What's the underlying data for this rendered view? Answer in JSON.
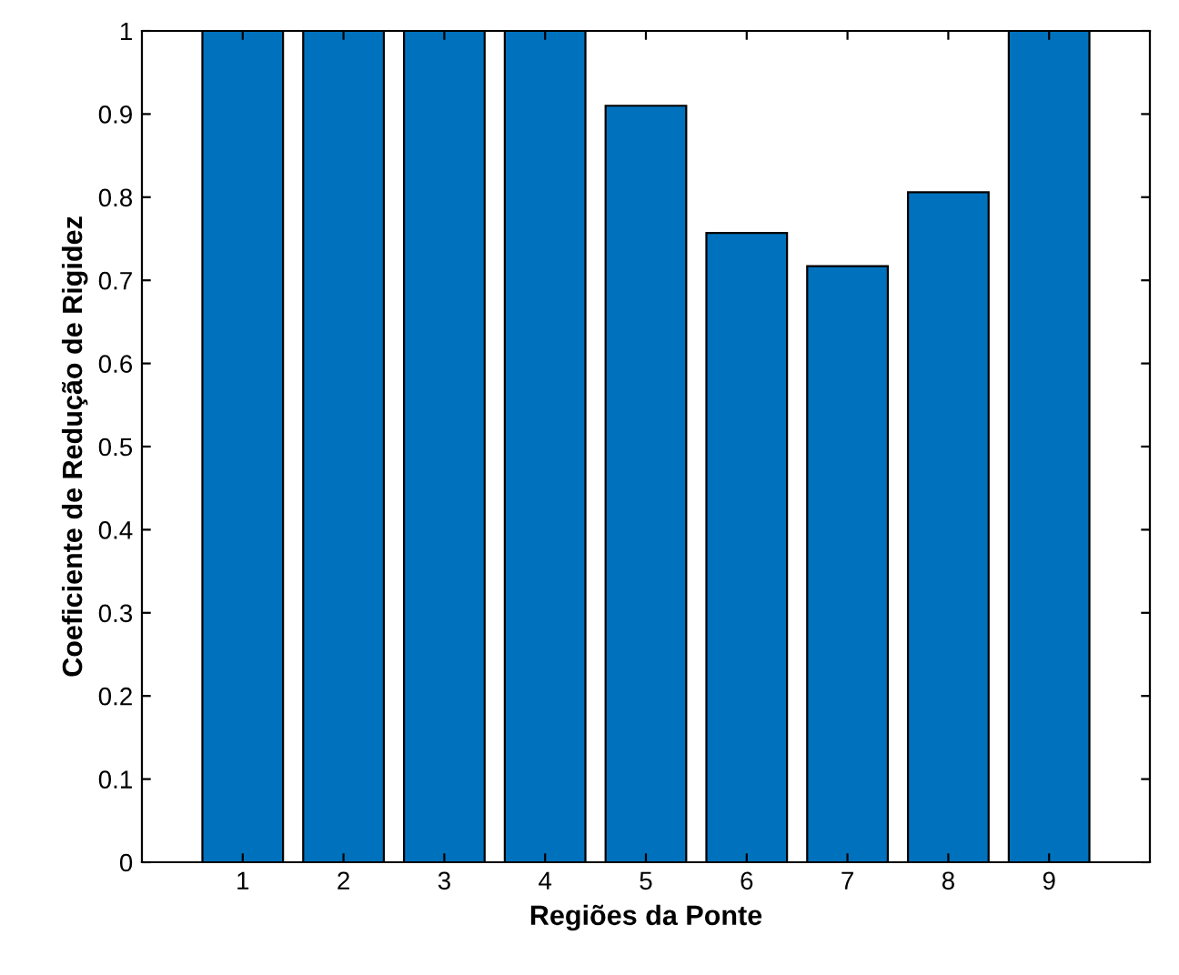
{
  "chart_data": {
    "type": "bar",
    "xlabel": "Regiões da Ponte",
    "ylabel": "Coeficiente de Redução de Rigidez",
    "categories": [
      "1",
      "2",
      "3",
      "4",
      "5",
      "6",
      "7",
      "8",
      "9"
    ],
    "values": [
      1,
      1,
      1,
      1,
      0.91,
      0.757,
      0.717,
      0.806,
      1
    ],
    "color": "#0072bd",
    "ylim": [
      0,
      1
    ],
    "yticks": [
      0,
      0.1,
      0.2,
      0.3,
      0.4,
      0.5,
      0.6,
      0.7,
      0.8,
      0.9,
      1
    ],
    "grid": false
  }
}
